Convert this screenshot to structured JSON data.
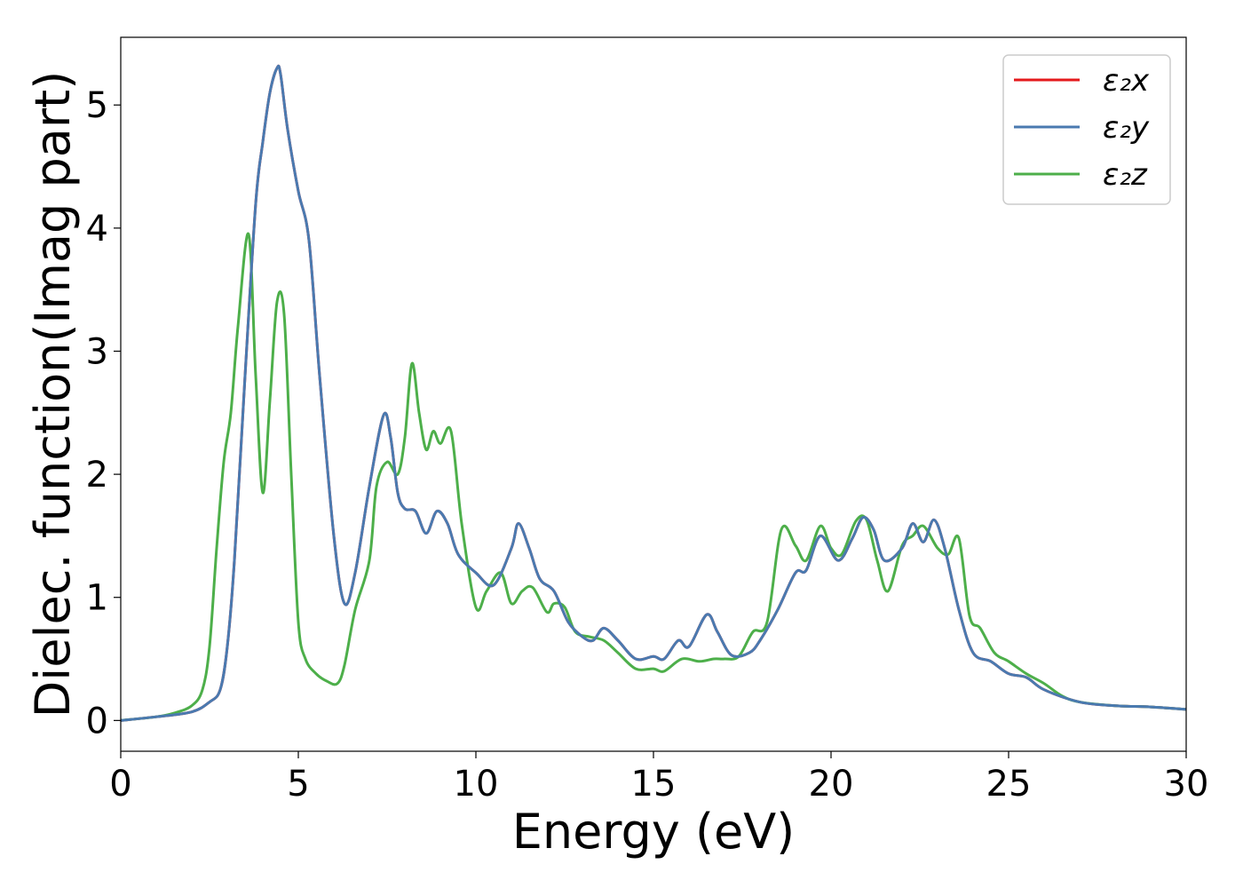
{
  "chart_data": {
    "type": "line",
    "xlabel": "Energy (eV)",
    "ylabel": "Dielec. function(Imag part)",
    "xlim": [
      0,
      30
    ],
    "ylim": [
      -0.25,
      5.55
    ],
    "xticks": [
      0,
      5,
      10,
      15,
      20,
      25,
      30
    ],
    "yticks": [
      0,
      1,
      2,
      3,
      4,
      5
    ],
    "grid": false,
    "legend_position": "top-right",
    "series": [
      {
        "name": "ε₂x",
        "color": "#e41a1c",
        "x": [
          0,
          1,
          2,
          2.5,
          2.8,
          3.0,
          3.2,
          3.5,
          3.8,
          4.0,
          4.2,
          4.4,
          4.5,
          4.7,
          5.0,
          5.3,
          5.6,
          6.0,
          6.3,
          6.6,
          7.0,
          7.4,
          7.6,
          7.8,
          8.0,
          8.3,
          8.6,
          8.9,
          9.2,
          9.5,
          10.0,
          10.5,
          11.0,
          11.2,
          11.5,
          11.8,
          12.2,
          12.6,
          13.0,
          13.3,
          13.6,
          14.0,
          14.5,
          15.0,
          15.3,
          15.7,
          16.0,
          16.5,
          16.8,
          17.2,
          17.7,
          18.0,
          18.5,
          19.0,
          19.3,
          19.7,
          20.2,
          20.6,
          20.9,
          21.2,
          21.5,
          22.0,
          22.3,
          22.6,
          22.9,
          23.2,
          23.6,
          24.0,
          24.5,
          25.0,
          25.5,
          26.0,
          27.0,
          28.0,
          29.0,
          30.0
        ],
        "values": [
          0.0,
          0.03,
          0.07,
          0.15,
          0.25,
          0.6,
          1.3,
          2.8,
          4.2,
          4.7,
          5.1,
          5.3,
          5.25,
          4.8,
          4.3,
          3.9,
          2.8,
          1.5,
          0.95,
          1.2,
          1.9,
          2.48,
          2.3,
          1.85,
          1.72,
          1.7,
          1.52,
          1.7,
          1.6,
          1.35,
          1.2,
          1.1,
          1.4,
          1.6,
          1.4,
          1.15,
          1.05,
          0.8,
          0.68,
          0.65,
          0.75,
          0.65,
          0.5,
          0.52,
          0.5,
          0.65,
          0.6,
          0.86,
          0.72,
          0.53,
          0.55,
          0.65,
          0.9,
          1.2,
          1.22,
          1.5,
          1.3,
          1.48,
          1.65,
          1.55,
          1.3,
          1.4,
          1.6,
          1.45,
          1.63,
          1.4,
          0.9,
          0.55,
          0.48,
          0.38,
          0.35,
          0.25,
          0.15,
          0.12,
          0.11,
          0.09
        ]
      },
      {
        "name": "ε₂y",
        "color": "#4a7ab0",
        "x": [
          0,
          1,
          2,
          2.5,
          2.8,
          3.0,
          3.2,
          3.5,
          3.8,
          4.0,
          4.2,
          4.4,
          4.5,
          4.7,
          5.0,
          5.3,
          5.6,
          6.0,
          6.3,
          6.6,
          7.0,
          7.4,
          7.6,
          7.8,
          8.0,
          8.3,
          8.6,
          8.9,
          9.2,
          9.5,
          10.0,
          10.5,
          11.0,
          11.2,
          11.5,
          11.8,
          12.2,
          12.6,
          13.0,
          13.3,
          13.6,
          14.0,
          14.5,
          15.0,
          15.3,
          15.7,
          16.0,
          16.5,
          16.8,
          17.2,
          17.7,
          18.0,
          18.5,
          19.0,
          19.3,
          19.7,
          20.2,
          20.6,
          20.9,
          21.2,
          21.5,
          22.0,
          22.3,
          22.6,
          22.9,
          23.2,
          23.6,
          24.0,
          24.5,
          25.0,
          25.5,
          26.0,
          27.0,
          28.0,
          29.0,
          30.0
        ],
        "values": [
          0.0,
          0.03,
          0.07,
          0.15,
          0.25,
          0.6,
          1.3,
          2.8,
          4.2,
          4.7,
          5.1,
          5.3,
          5.25,
          4.8,
          4.3,
          3.9,
          2.8,
          1.5,
          0.95,
          1.2,
          1.9,
          2.48,
          2.3,
          1.85,
          1.72,
          1.7,
          1.52,
          1.7,
          1.6,
          1.35,
          1.2,
          1.1,
          1.4,
          1.6,
          1.4,
          1.15,
          1.05,
          0.8,
          0.68,
          0.65,
          0.75,
          0.65,
          0.5,
          0.52,
          0.5,
          0.65,
          0.6,
          0.86,
          0.72,
          0.53,
          0.55,
          0.65,
          0.9,
          1.2,
          1.22,
          1.5,
          1.3,
          1.48,
          1.65,
          1.55,
          1.3,
          1.4,
          1.6,
          1.45,
          1.63,
          1.4,
          0.9,
          0.55,
          0.48,
          0.38,
          0.35,
          0.25,
          0.15,
          0.12,
          0.11,
          0.09
        ]
      },
      {
        "name": "ε₂z",
        "color": "#4daf4a",
        "x": [
          0,
          1,
          1.5,
          2.0,
          2.3,
          2.5,
          2.7,
          2.9,
          3.1,
          3.3,
          3.6,
          3.8,
          4.0,
          4.2,
          4.4,
          4.6,
          4.8,
          5.0,
          5.2,
          5.5,
          5.8,
          6.1,
          6.3,
          6.6,
          7.0,
          7.2,
          7.5,
          7.8,
          8.0,
          8.2,
          8.4,
          8.6,
          8.8,
          9.0,
          9.3,
          9.6,
          10.0,
          10.3,
          10.7,
          11.0,
          11.3,
          11.6,
          12.0,
          12.2,
          12.5,
          12.8,
          13.2,
          13.6,
          14.0,
          14.5,
          15.0,
          15.3,
          15.8,
          16.3,
          16.7,
          17.0,
          17.4,
          17.8,
          18.2,
          18.6,
          19.0,
          19.3,
          19.7,
          20.0,
          20.3,
          20.7,
          21.0,
          21.3,
          21.6,
          22.0,
          22.3,
          22.6,
          23.0,
          23.3,
          23.6,
          23.9,
          24.2,
          24.6,
          25.0,
          25.5,
          26.0,
          26.5,
          27.0,
          28.0,
          29.0,
          30.0
        ],
        "values": [
          0.0,
          0.03,
          0.06,
          0.12,
          0.25,
          0.6,
          1.4,
          2.1,
          2.5,
          3.2,
          3.95,
          2.8,
          1.85,
          2.6,
          3.4,
          3.3,
          2.0,
          0.8,
          0.5,
          0.38,
          0.32,
          0.3,
          0.45,
          0.9,
          1.3,
          1.9,
          2.1,
          2.0,
          2.3,
          2.9,
          2.5,
          2.2,
          2.35,
          2.25,
          2.35,
          1.6,
          0.92,
          1.05,
          1.2,
          0.95,
          1.05,
          1.08,
          0.88,
          0.95,
          0.92,
          0.72,
          0.68,
          0.65,
          0.55,
          0.42,
          0.42,
          0.4,
          0.5,
          0.48,
          0.5,
          0.5,
          0.52,
          0.72,
          0.8,
          1.55,
          1.42,
          1.3,
          1.58,
          1.4,
          1.35,
          1.62,
          1.63,
          1.3,
          1.05,
          1.42,
          1.5,
          1.58,
          1.4,
          1.35,
          1.48,
          0.85,
          0.75,
          0.55,
          0.48,
          0.38,
          0.3,
          0.2,
          0.15,
          0.12,
          0.11,
          0.09
        ]
      }
    ]
  }
}
